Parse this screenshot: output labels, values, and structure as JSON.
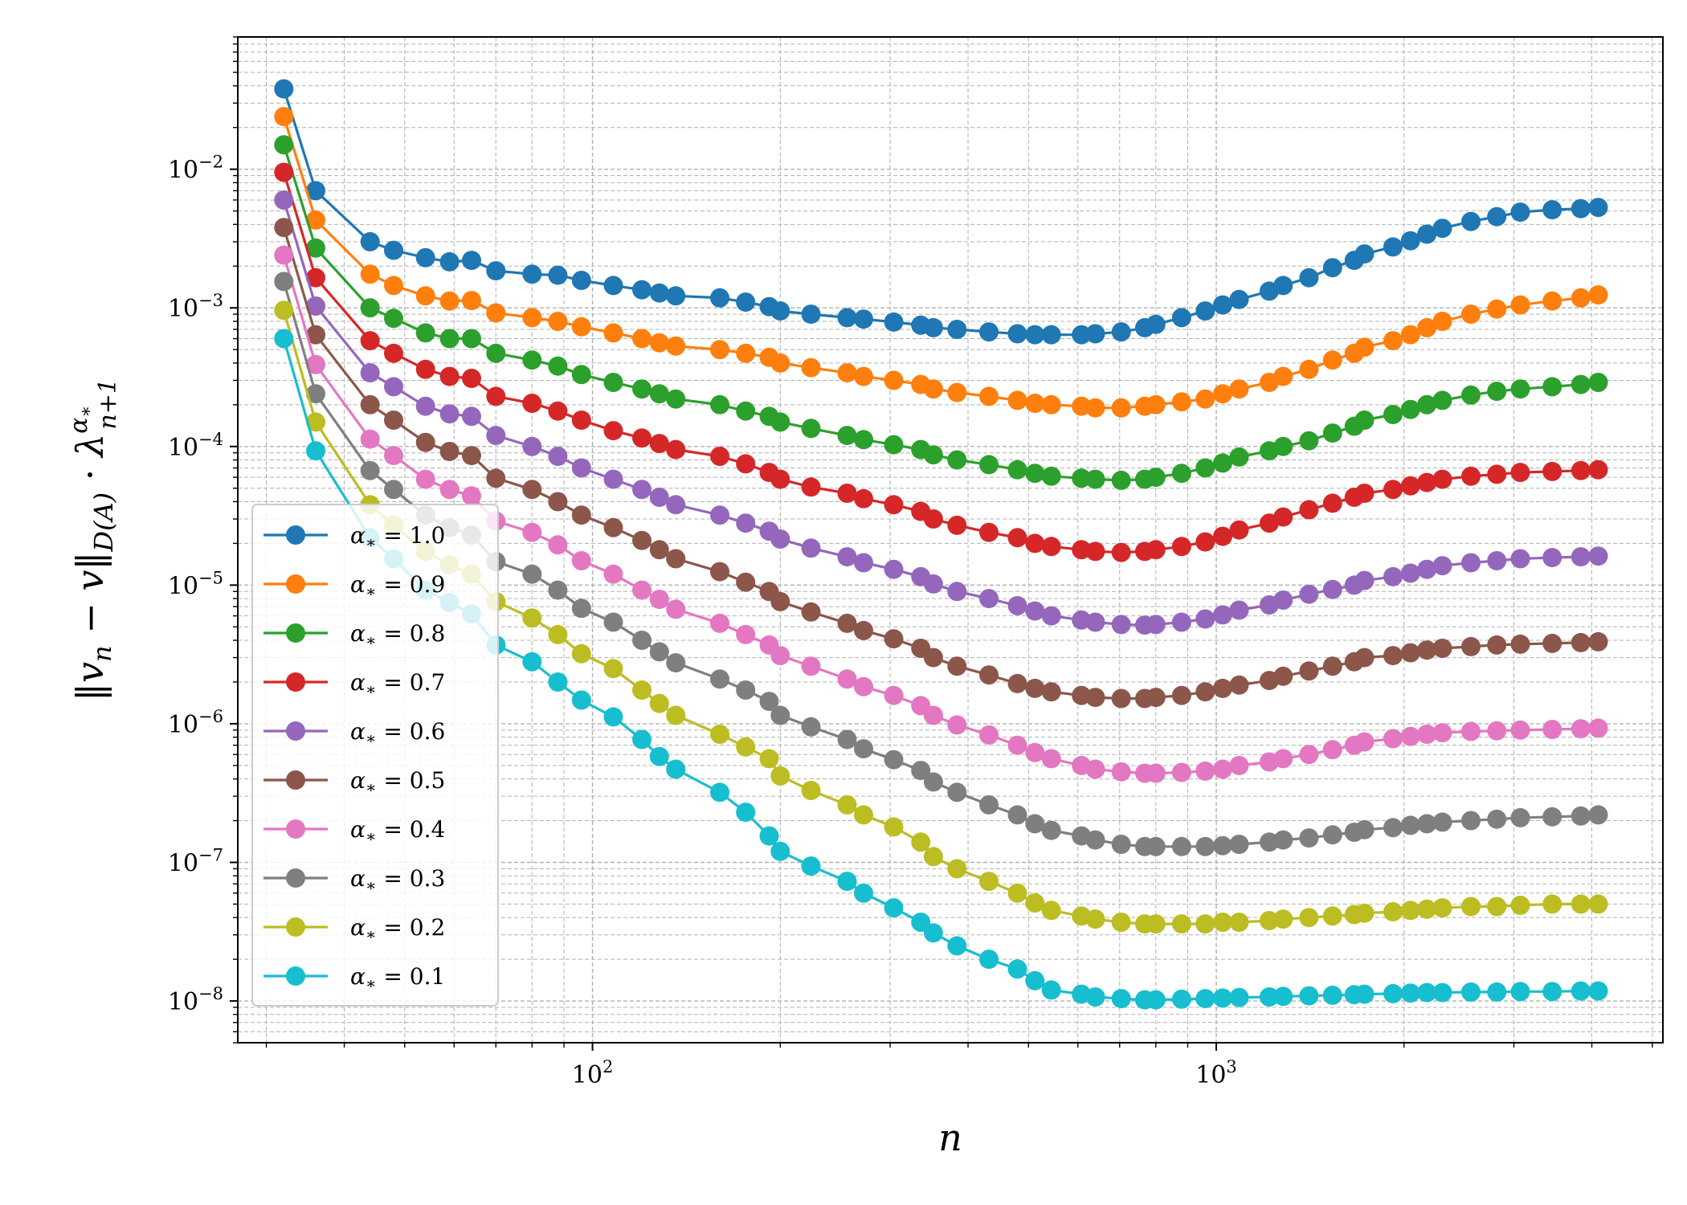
{
  "chart_data": {
    "type": "line",
    "title": "",
    "xlabel": "n",
    "ylabel_parts": {
      "norm_left": "‖",
      "v": "v",
      "sub_n": "n",
      "minus": " − ",
      "v2": "v",
      "norm_right": "‖",
      "norm_sub": "D(A)",
      "dot": " · ",
      "lambda": "λ",
      "lambda_sub": "n+1",
      "lambda_sup": "α",
      "lambda_sup_sub": "∗"
    },
    "xscale": "log",
    "yscale": "log",
    "xlim": [
      27,
      5200
    ],
    "ylim": [
      5e-09,
      0.09
    ],
    "grid": true,
    "legend_position": "lower-left",
    "x_ticks": [
      {
        "value": 100,
        "base": "10",
        "exp": "2"
      },
      {
        "value": 1000,
        "base": "10",
        "exp": "3"
      }
    ],
    "y_ticks": [
      {
        "value": 0.01,
        "base": "10",
        "exp": "−2"
      },
      {
        "value": 0.001,
        "base": "10",
        "exp": "−3"
      },
      {
        "value": 0.0001,
        "base": "10",
        "exp": "−4"
      },
      {
        "value": 1e-05,
        "base": "10",
        "exp": "−5"
      },
      {
        "value": 1e-06,
        "base": "10",
        "exp": "−6"
      },
      {
        "value": 1e-07,
        "base": "10",
        "exp": "−7"
      },
      {
        "value": 1e-08,
        "base": "10",
        "exp": "−8"
      }
    ],
    "x": [
      32,
      36,
      44,
      48,
      54,
      59,
      64,
      70,
      80,
      88,
      96,
      108,
      120,
      128,
      136,
      160,
      176,
      192,
      200,
      224,
      256,
      272,
      304,
      336,
      352,
      384,
      432,
      480,
      512,
      544,
      608,
      640,
      704,
      768,
      800,
      880,
      960,
      1024,
      1088,
      1216,
      1280,
      1408,
      1536,
      1664,
      1728,
      1920,
      2048,
      2176,
      2304,
      2560,
      2816,
      3072,
      3456,
      3840,
      4096
    ],
    "series": [
      {
        "name": "1.0",
        "color": "#1f77b4",
        "values": [
          0.038,
          0.007,
          0.003,
          0.0026,
          0.0023,
          0.00215,
          0.0022,
          0.00185,
          0.00175,
          0.00172,
          0.00158,
          0.00145,
          0.00135,
          0.00128,
          0.00122,
          0.00118,
          0.0011,
          0.00102,
          0.00095,
          0.0009,
          0.00085,
          0.00083,
          0.00079,
          0.00075,
          0.00072,
          0.0007,
          0.00067,
          0.00065,
          0.00064,
          0.00064,
          0.00064,
          0.00065,
          0.00067,
          0.00072,
          0.00076,
          0.00085,
          0.00095,
          0.00105,
          0.00115,
          0.00132,
          0.00145,
          0.00165,
          0.00195,
          0.0022,
          0.00245,
          0.00275,
          0.00305,
          0.0034,
          0.00375,
          0.0042,
          0.00455,
          0.0049,
          0.0051,
          0.0052,
          0.0053
        ]
      },
      {
        "name": "0.9",
        "color": "#ff7f0e",
        "values": [
          0.024,
          0.0043,
          0.00175,
          0.00145,
          0.00122,
          0.00112,
          0.00113,
          0.00092,
          0.00085,
          0.0008,
          0.00073,
          0.00066,
          0.0006,
          0.00056,
          0.00053,
          0.0005,
          0.00047,
          0.00044,
          0.0004,
          0.00037,
          0.00034,
          0.00032,
          0.0003,
          0.00028,
          0.00026,
          0.000245,
          0.00023,
          0.000215,
          0.000205,
          0.0002,
          0.000195,
          0.00019,
          0.00019,
          0.000195,
          0.0002,
          0.00021,
          0.00022,
          0.00024,
          0.00026,
          0.00029,
          0.00032,
          0.00036,
          0.00042,
          0.00047,
          0.00052,
          0.00058,
          0.00064,
          0.00072,
          0.0008,
          0.0009,
          0.00098,
          0.00105,
          0.00112,
          0.00118,
          0.00124
        ]
      },
      {
        "name": "0.8",
        "color": "#2ca02c",
        "values": [
          0.015,
          0.0027,
          0.001,
          0.00084,
          0.00066,
          0.0006,
          0.0006,
          0.00047,
          0.00042,
          0.00038,
          0.00033,
          0.00029,
          0.00026,
          0.00024,
          0.00022,
          0.0002,
          0.00018,
          0.000165,
          0.00015,
          0.000135,
          0.00012,
          0.000112,
          0.000103,
          9.5e-05,
          8.7e-05,
          8e-05,
          7.4e-05,
          6.8e-05,
          6.4e-05,
          6.1e-05,
          5.9e-05,
          5.8e-05,
          5.7e-05,
          5.8e-05,
          6e-05,
          6.4e-05,
          7e-05,
          7.6e-05,
          8.4e-05,
          9.3e-05,
          0.0001,
          0.00011,
          0.000125,
          0.00014,
          0.000155,
          0.00017,
          0.000185,
          0.0002,
          0.000215,
          0.000235,
          0.00025,
          0.00026,
          0.00027,
          0.00028,
          0.00029
        ]
      },
      {
        "name": "0.7",
        "color": "#d62728",
        "values": [
          0.0095,
          0.00165,
          0.00058,
          0.00047,
          0.00036,
          0.00032,
          0.00031,
          0.00023,
          0.000205,
          0.00018,
          0.000155,
          0.00013,
          0.000115,
          0.000105,
          9.5e-05,
          8.5e-05,
          7.5e-05,
          6.5e-05,
          5.8e-05,
          5.1e-05,
          4.6e-05,
          4.2e-05,
          3.8e-05,
          3.4e-05,
          3e-05,
          2.7e-05,
          2.4e-05,
          2.2e-05,
          2e-05,
          1.9e-05,
          1.8e-05,
          1.75e-05,
          1.72e-05,
          1.75e-05,
          1.8e-05,
          1.9e-05,
          2.05e-05,
          2.25e-05,
          2.5e-05,
          2.8e-05,
          3.1e-05,
          3.5e-05,
          3.9e-05,
          4.3e-05,
          4.6e-05,
          4.9e-05,
          5.2e-05,
          5.5e-05,
          5.8e-05,
          6.1e-05,
          6.3e-05,
          6.5e-05,
          6.6e-05,
          6.7e-05,
          6.8e-05
        ]
      },
      {
        "name": "0.6",
        "color": "#9467bd",
        "values": [
          0.006,
          0.00103,
          0.00034,
          0.00027,
          0.000195,
          0.000172,
          0.000165,
          0.00012,
          0.0001,
          8.5e-05,
          7e-05,
          5.8e-05,
          4.9e-05,
          4.3e-05,
          3.8e-05,
          3.2e-05,
          2.8e-05,
          2.45e-05,
          2.15e-05,
          1.85e-05,
          1.6e-05,
          1.45e-05,
          1.3e-05,
          1.15e-05,
          1.02e-05,
          9e-06,
          8e-06,
          7.1e-06,
          6.5e-06,
          6e-06,
          5.6e-06,
          5.4e-06,
          5.2e-06,
          5.15e-06,
          5.2e-06,
          5.4e-06,
          5.7e-06,
          6.1e-06,
          6.6e-06,
          7.2e-06,
          7.8e-06,
          8.6e-06,
          9.3e-06,
          1e-05,
          1.08e-05,
          1.15e-05,
          1.22e-05,
          1.3e-05,
          1.38e-05,
          1.45e-05,
          1.5e-05,
          1.55e-05,
          1.58e-05,
          1.6e-05,
          1.62e-05
        ]
      },
      {
        "name": "0.5",
        "color": "#8c564b",
        "values": [
          0.0038,
          0.00064,
          0.0002,
          0.000155,
          0.000107,
          9.2e-05,
          8.6e-05,
          5.9e-05,
          4.9e-05,
          4e-05,
          3.2e-05,
          2.6e-05,
          2.1e-05,
          1.8e-05,
          1.55e-05,
          1.25e-05,
          1.05e-05,
          9e-06,
          7.6e-06,
          6.4e-06,
          5.3e-06,
          4.7e-06,
          4.1e-06,
          3.5e-06,
          3e-06,
          2.6e-06,
          2.25e-06,
          1.95e-06,
          1.8e-06,
          1.7e-06,
          1.6e-06,
          1.55e-06,
          1.52e-06,
          1.52e-06,
          1.55e-06,
          1.6e-06,
          1.7e-06,
          1.8e-06,
          1.9e-06,
          2.05e-06,
          2.2e-06,
          2.4e-06,
          2.6e-06,
          2.8e-06,
          3e-06,
          3.1e-06,
          3.25e-06,
          3.4e-06,
          3.5e-06,
          3.6e-06,
          3.7e-06,
          3.75e-06,
          3.8e-06,
          3.85e-06,
          3.9e-06
        ]
      },
      {
        "name": "0.4",
        "color": "#e377c2",
        "values": [
          0.0024,
          0.00039,
          0.000113,
          8.6e-05,
          5.8e-05,
          4.9e-05,
          4.4e-05,
          2.9e-05,
          2.4e-05,
          1.95e-05,
          1.5e-05,
          1.2e-05,
          9.2e-06,
          7.9e-06,
          6.7e-06,
          5.3e-06,
          4.4e-06,
          3.7e-06,
          3.1e-06,
          2.6e-06,
          2.1e-06,
          1.85e-06,
          1.6e-06,
          1.35e-06,
          1.15e-06,
          9.8e-07,
          8.3e-07,
          7e-07,
          6.2e-07,
          5.6e-07,
          5e-07,
          4.7e-07,
          4.5e-07,
          4.4e-07,
          4.4e-07,
          4.45e-07,
          4.55e-07,
          4.7e-07,
          5e-07,
          5.3e-07,
          5.6e-07,
          6e-07,
          6.5e-07,
          7e-07,
          7.4e-07,
          7.8e-07,
          8.1e-07,
          8.4e-07,
          8.6e-07,
          8.8e-07,
          8.9e-07,
          9e-07,
          9.1e-07,
          9.2e-07,
          9.3e-07
        ]
      },
      {
        "name": "0.3",
        "color": "#7f7f7f",
        "values": [
          0.00155,
          0.00024,
          6.7e-05,
          4.9e-05,
          3.2e-05,
          2.6e-05,
          2.3e-05,
          1.48e-05,
          1.2e-05,
          9.2e-06,
          6.8e-06,
          5.4e-06,
          4e-06,
          3.3e-06,
          2.75e-06,
          2.1e-06,
          1.75e-06,
          1.45e-06,
          1.15e-06,
          9.5e-07,
          7.7e-07,
          6.6e-07,
          5.5e-07,
          4.6e-07,
          3.8e-07,
          3.2e-07,
          2.6e-07,
          2.2e-07,
          1.9e-07,
          1.7e-07,
          1.55e-07,
          1.45e-07,
          1.35e-07,
          1.3e-07,
          1.3e-07,
          1.3e-07,
          1.3e-07,
          1.32e-07,
          1.35e-07,
          1.4e-07,
          1.45e-07,
          1.5e-07,
          1.58e-07,
          1.65e-07,
          1.72e-07,
          1.78e-07,
          1.85e-07,
          1.9e-07,
          1.95e-07,
          2e-07,
          2.05e-07,
          2.1e-07,
          2.13e-07,
          2.16e-07,
          2.2e-07
        ]
      },
      {
        "name": "0.2",
        "color": "#bcbd22",
        "values": [
          0.00096,
          0.00015,
          3.8e-05,
          2.7e-05,
          1.75e-05,
          1.4e-05,
          1.2e-05,
          7.6e-06,
          5.8e-06,
          4.4e-06,
          3.2e-06,
          2.5e-06,
          1.75e-06,
          1.4e-06,
          1.15e-06,
          8.4e-07,
          6.8e-07,
          5.6e-07,
          4.2e-07,
          3.3e-07,
          2.6e-07,
          2.2e-07,
          1.8e-07,
          1.4e-07,
          1.1e-07,
          9e-08,
          7.3e-08,
          6e-08,
          5.1e-08,
          4.5e-08,
          4.1e-08,
          3.9e-08,
          3.7e-08,
          3.6e-08,
          3.6e-08,
          3.6e-08,
          3.6e-08,
          3.7e-08,
          3.7e-08,
          3.8e-08,
          3.9e-08,
          4e-08,
          4.1e-08,
          4.2e-08,
          4.3e-08,
          4.4e-08,
          4.5e-08,
          4.6e-08,
          4.7e-08,
          4.8e-08,
          4.8e-08,
          4.9e-08,
          5e-08,
          5e-08,
          5e-08
        ]
      },
      {
        "name": "0.1",
        "color": "#17becf",
        "values": [
          0.0006,
          9.3e-05,
          2.2e-05,
          1.55e-05,
          9.2e-06,
          7.5e-06,
          6.2e-06,
          3.7e-06,
          2.8e-06,
          2e-06,
          1.48e-06,
          1.12e-06,
          7.7e-07,
          5.8e-07,
          4.7e-07,
          3.2e-07,
          2.3e-07,
          1.55e-07,
          1.2e-07,
          9.4e-08,
          7.3e-08,
          6e-08,
          4.7e-08,
          3.7e-08,
          3.1e-08,
          2.5e-08,
          2e-08,
          1.7e-08,
          1.4e-08,
          1.2e-08,
          1.12e-08,
          1.07e-08,
          1.04e-08,
          1.02e-08,
          1.02e-08,
          1.03e-08,
          1.04e-08,
          1.05e-08,
          1.06e-08,
          1.07e-08,
          1.08e-08,
          1.09e-08,
          1.1e-08,
          1.11e-08,
          1.12e-08,
          1.13e-08,
          1.14e-08,
          1.15e-08,
          1.15e-08,
          1.16e-08,
          1.16e-08,
          1.17e-08,
          1.17e-08,
          1.18e-08,
          1.18e-08
        ]
      }
    ],
    "legend_prefix": "α",
    "legend_sub": "∗",
    "legend_eq": " = "
  }
}
